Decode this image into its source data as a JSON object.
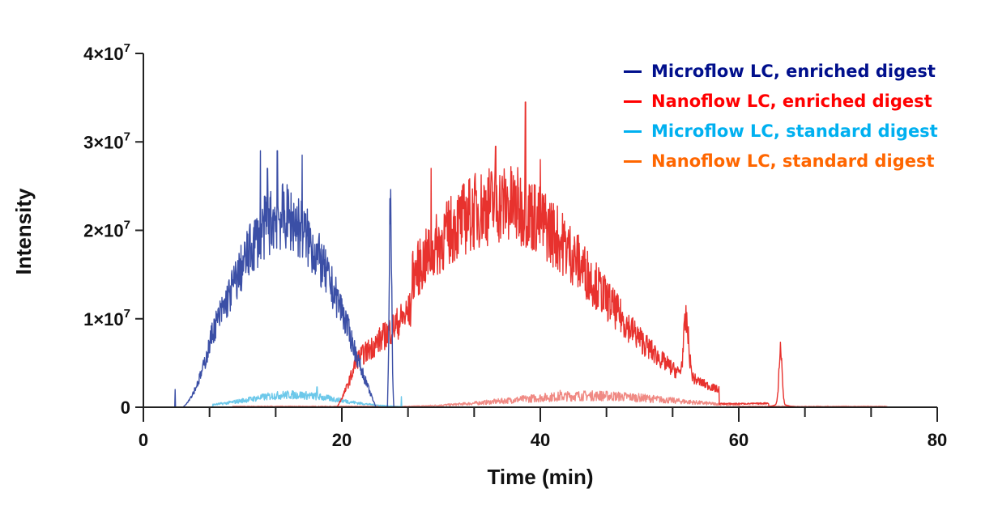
{
  "chart_data": {
    "type": "line",
    "title": "",
    "xlabel": "Time (min)",
    "ylabel": "Intensity",
    "xlim": [
      0,
      80
    ],
    "ylim": [
      0,
      40000000
    ],
    "x_ticks": [
      0,
      20,
      40,
      60,
      80
    ],
    "x_tick_labels": [
      "0",
      "20",
      "40",
      "60",
      "80"
    ],
    "y_ticks": [
      0,
      10000000,
      20000000,
      30000000,
      40000000
    ],
    "y_tick_labels": [
      {
        "base": "0",
        "exp": ""
      },
      {
        "base": "1×10",
        "exp": "7"
      },
      {
        "base": "2×10",
        "exp": "7"
      },
      {
        "base": "3×10",
        "exp": "7"
      },
      {
        "base": "4×10",
        "exp": "7"
      }
    ],
    "grid": false,
    "legend_position": "top-right",
    "series": [
      {
        "name": "Microflow LC, enriched digest",
        "color": "#3b4fa6",
        "legend_color": "#000f8c"
      },
      {
        "name": "Nanoflow LC, enriched digest",
        "color": "#e8322e",
        "legend_color": "#ff0000"
      },
      {
        "name": "Microflow LC, standard digest",
        "color": "#6cc8ea",
        "legend_color": "#00b0f0"
      },
      {
        "name": "Nanoflow LC, standard digest",
        "color": "#f08a84",
        "legend_color": "#ff6600"
      }
    ]
  }
}
